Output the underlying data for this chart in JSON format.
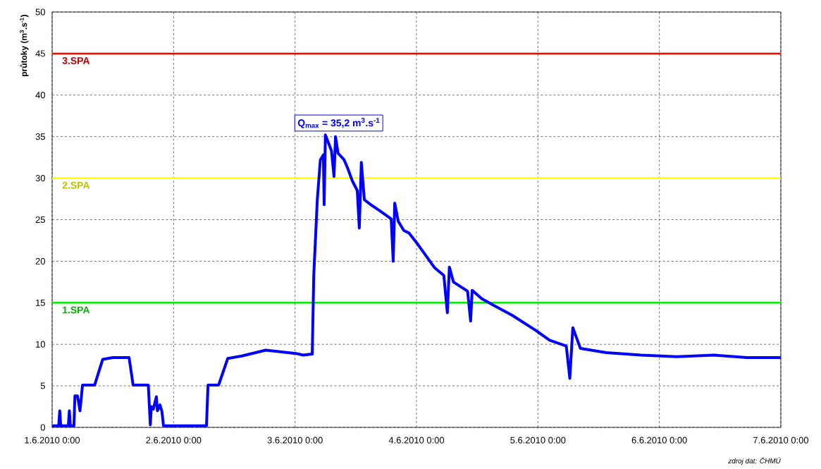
{
  "chart_data": {
    "type": "line",
    "ylabel": "průtoky (m$^{3}$.s$^{-1}$)",
    "xlim": [
      "2010-06-01T00:00",
      "2010-06-07T00:00"
    ],
    "xticks": [
      {
        "value": "2010-06-01T00:00",
        "label": "1.6.2010 0:00"
      },
      {
        "value": "2010-06-02T00:00",
        "label": "2.6.2010 0:00"
      },
      {
        "value": "2010-06-03T00:00",
        "label": "3.6.2010 0:00"
      },
      {
        "value": "2010-06-04T00:00",
        "label": "4.6.2010 0:00"
      },
      {
        "value": "2010-06-05T00:00",
        "label": "5.6.2010 0:00"
      },
      {
        "value": "2010-06-06T00:00",
        "label": "6.6.2010 0:00"
      },
      {
        "value": "2010-06-07T00:00",
        "label": "7.6.2010 0:00"
      }
    ],
    "ylim": [
      0,
      50
    ],
    "yticks": [
      0,
      5,
      10,
      15,
      20,
      25,
      30,
      35,
      40,
      45,
      50
    ],
    "grid": true,
    "series": [
      {
        "color": "#0000ff",
        "x": [
          "2010-06-01T00:00",
          "2010-06-01T01:18",
          "2010-06-01T01:30",
          "2010-06-01T01:42",
          "2010-06-01T03:12",
          "2010-06-01T03:24",
          "2010-06-01T03:36",
          "2010-06-01T04:18",
          "2010-06-01T04:30",
          "2010-06-01T05:00",
          "2010-06-01T05:30",
          "2010-06-01T06:00",
          "2010-06-01T08:24",
          "2010-06-01T10:00",
          "2010-06-01T12:00",
          "2010-06-01T15:12",
          "2010-06-01T16:00",
          "2010-06-01T19:00",
          "2010-06-01T19:24",
          "2010-06-01T19:36",
          "2010-06-01T20:00",
          "2010-06-01T20:36",
          "2010-06-01T20:48",
          "2010-06-01T21:18",
          "2010-06-01T21:42",
          "2010-06-01T22:00",
          "2010-06-02T06:30",
          "2010-06-02T06:48",
          "2010-06-02T08:54",
          "2010-06-02T10:42",
          "2010-06-02T13:30",
          "2010-06-02T18:12",
          "2010-06-03T00:12",
          "2010-06-03T01:36",
          "2010-06-03T03:00",
          "2010-06-03T03:24",
          "2010-06-03T03:42",
          "2010-06-03T04:24",
          "2010-06-03T05:00",
          "2010-06-03T05:36",
          "2010-06-03T05:45",
          "2010-06-03T06:00",
          "2010-06-03T07:12",
          "2010-06-03T07:42",
          "2010-06-03T08:00",
          "2010-06-03T08:30",
          "2010-06-03T09:42",
          "2010-06-03T10:24",
          "2010-06-03T11:18",
          "2010-06-03T12:18",
          "2010-06-03T12:42",
          "2010-06-03T13:06",
          "2010-06-03T13:42",
          "2010-06-03T15:00",
          "2010-06-03T16:54",
          "2010-06-03T19:00",
          "2010-06-03T19:24",
          "2010-06-03T19:42",
          "2010-06-03T20:24",
          "2010-06-03T21:30",
          "2010-06-03T22:30",
          "2010-06-04T00:18",
          "2010-06-04T03:36",
          "2010-06-04T05:24",
          "2010-06-04T06:06",
          "2010-06-04T06:30",
          "2010-06-04T07:18",
          "2010-06-04T10:06",
          "2010-06-04T10:42",
          "2010-06-04T11:00",
          "2010-06-04T12:54",
          "2010-06-04T15:12",
          "2010-06-04T18:54",
          "2010-06-04T23:30",
          "2010-06-05T02:18",
          "2010-06-05T05:36",
          "2010-06-05T06:18",
          "2010-06-05T06:54",
          "2010-06-05T08:24",
          "2010-06-05T13:30",
          "2010-06-05T20:24",
          "2010-06-06T03:24",
          "2010-06-06T10:48",
          "2010-06-06T17:18",
          "2010-06-07T00:00"
        ],
        "values": [
          0.2,
          0.2,
          2.0,
          0.2,
          0.2,
          2.0,
          0.2,
          0.2,
          3.8,
          3.8,
          2.0,
          5.1,
          5.1,
          8.2,
          8.4,
          8.4,
          5.1,
          5.1,
          0.3,
          2.5,
          2.2,
          3.7,
          2.0,
          2.7,
          1.9,
          0.2,
          0.2,
          5.1,
          5.1,
          8.3,
          8.6,
          9.3,
          8.9,
          8.7,
          8.8,
          8.8,
          18.3,
          27.4,
          32.2,
          32.8,
          26.8,
          35.2,
          33.3,
          30.2,
          35.0,
          33.0,
          32.2,
          31.2,
          29.7,
          28.5,
          24.0,
          31.9,
          27.4,
          26.8,
          26.0,
          25.1,
          20.0,
          27.0,
          24.8,
          23.7,
          23.4,
          22.0,
          19.2,
          18.3,
          13.8,
          19.3,
          17.5,
          16.4,
          12.8,
          16.5,
          15.5,
          14.7,
          13.5,
          11.7,
          10.5,
          9.8,
          5.9,
          12.0,
          9.5,
          9.0,
          8.7,
          8.5,
          8.7,
          8.4,
          8.4
        ]
      }
    ],
    "ref_lines": [
      {
        "axis": "y",
        "value": 45,
        "label": "3.SPA",
        "color": "#ff0000"
      },
      {
        "axis": "y",
        "value": 30,
        "label": "2.SPA",
        "color": "#ffff00"
      },
      {
        "axis": "y",
        "value": 15,
        "label": "1.SPA",
        "color": "#00ee00"
      }
    ],
    "annotations": [
      {
        "text": "Q$_{max}$ = 35,2 m$^{3}$.s$^{-1}$",
        "x": "2010-06-03T06:00",
        "y": 35.2
      },
      "zdroj dat: ČHMÚ"
    ]
  }
}
